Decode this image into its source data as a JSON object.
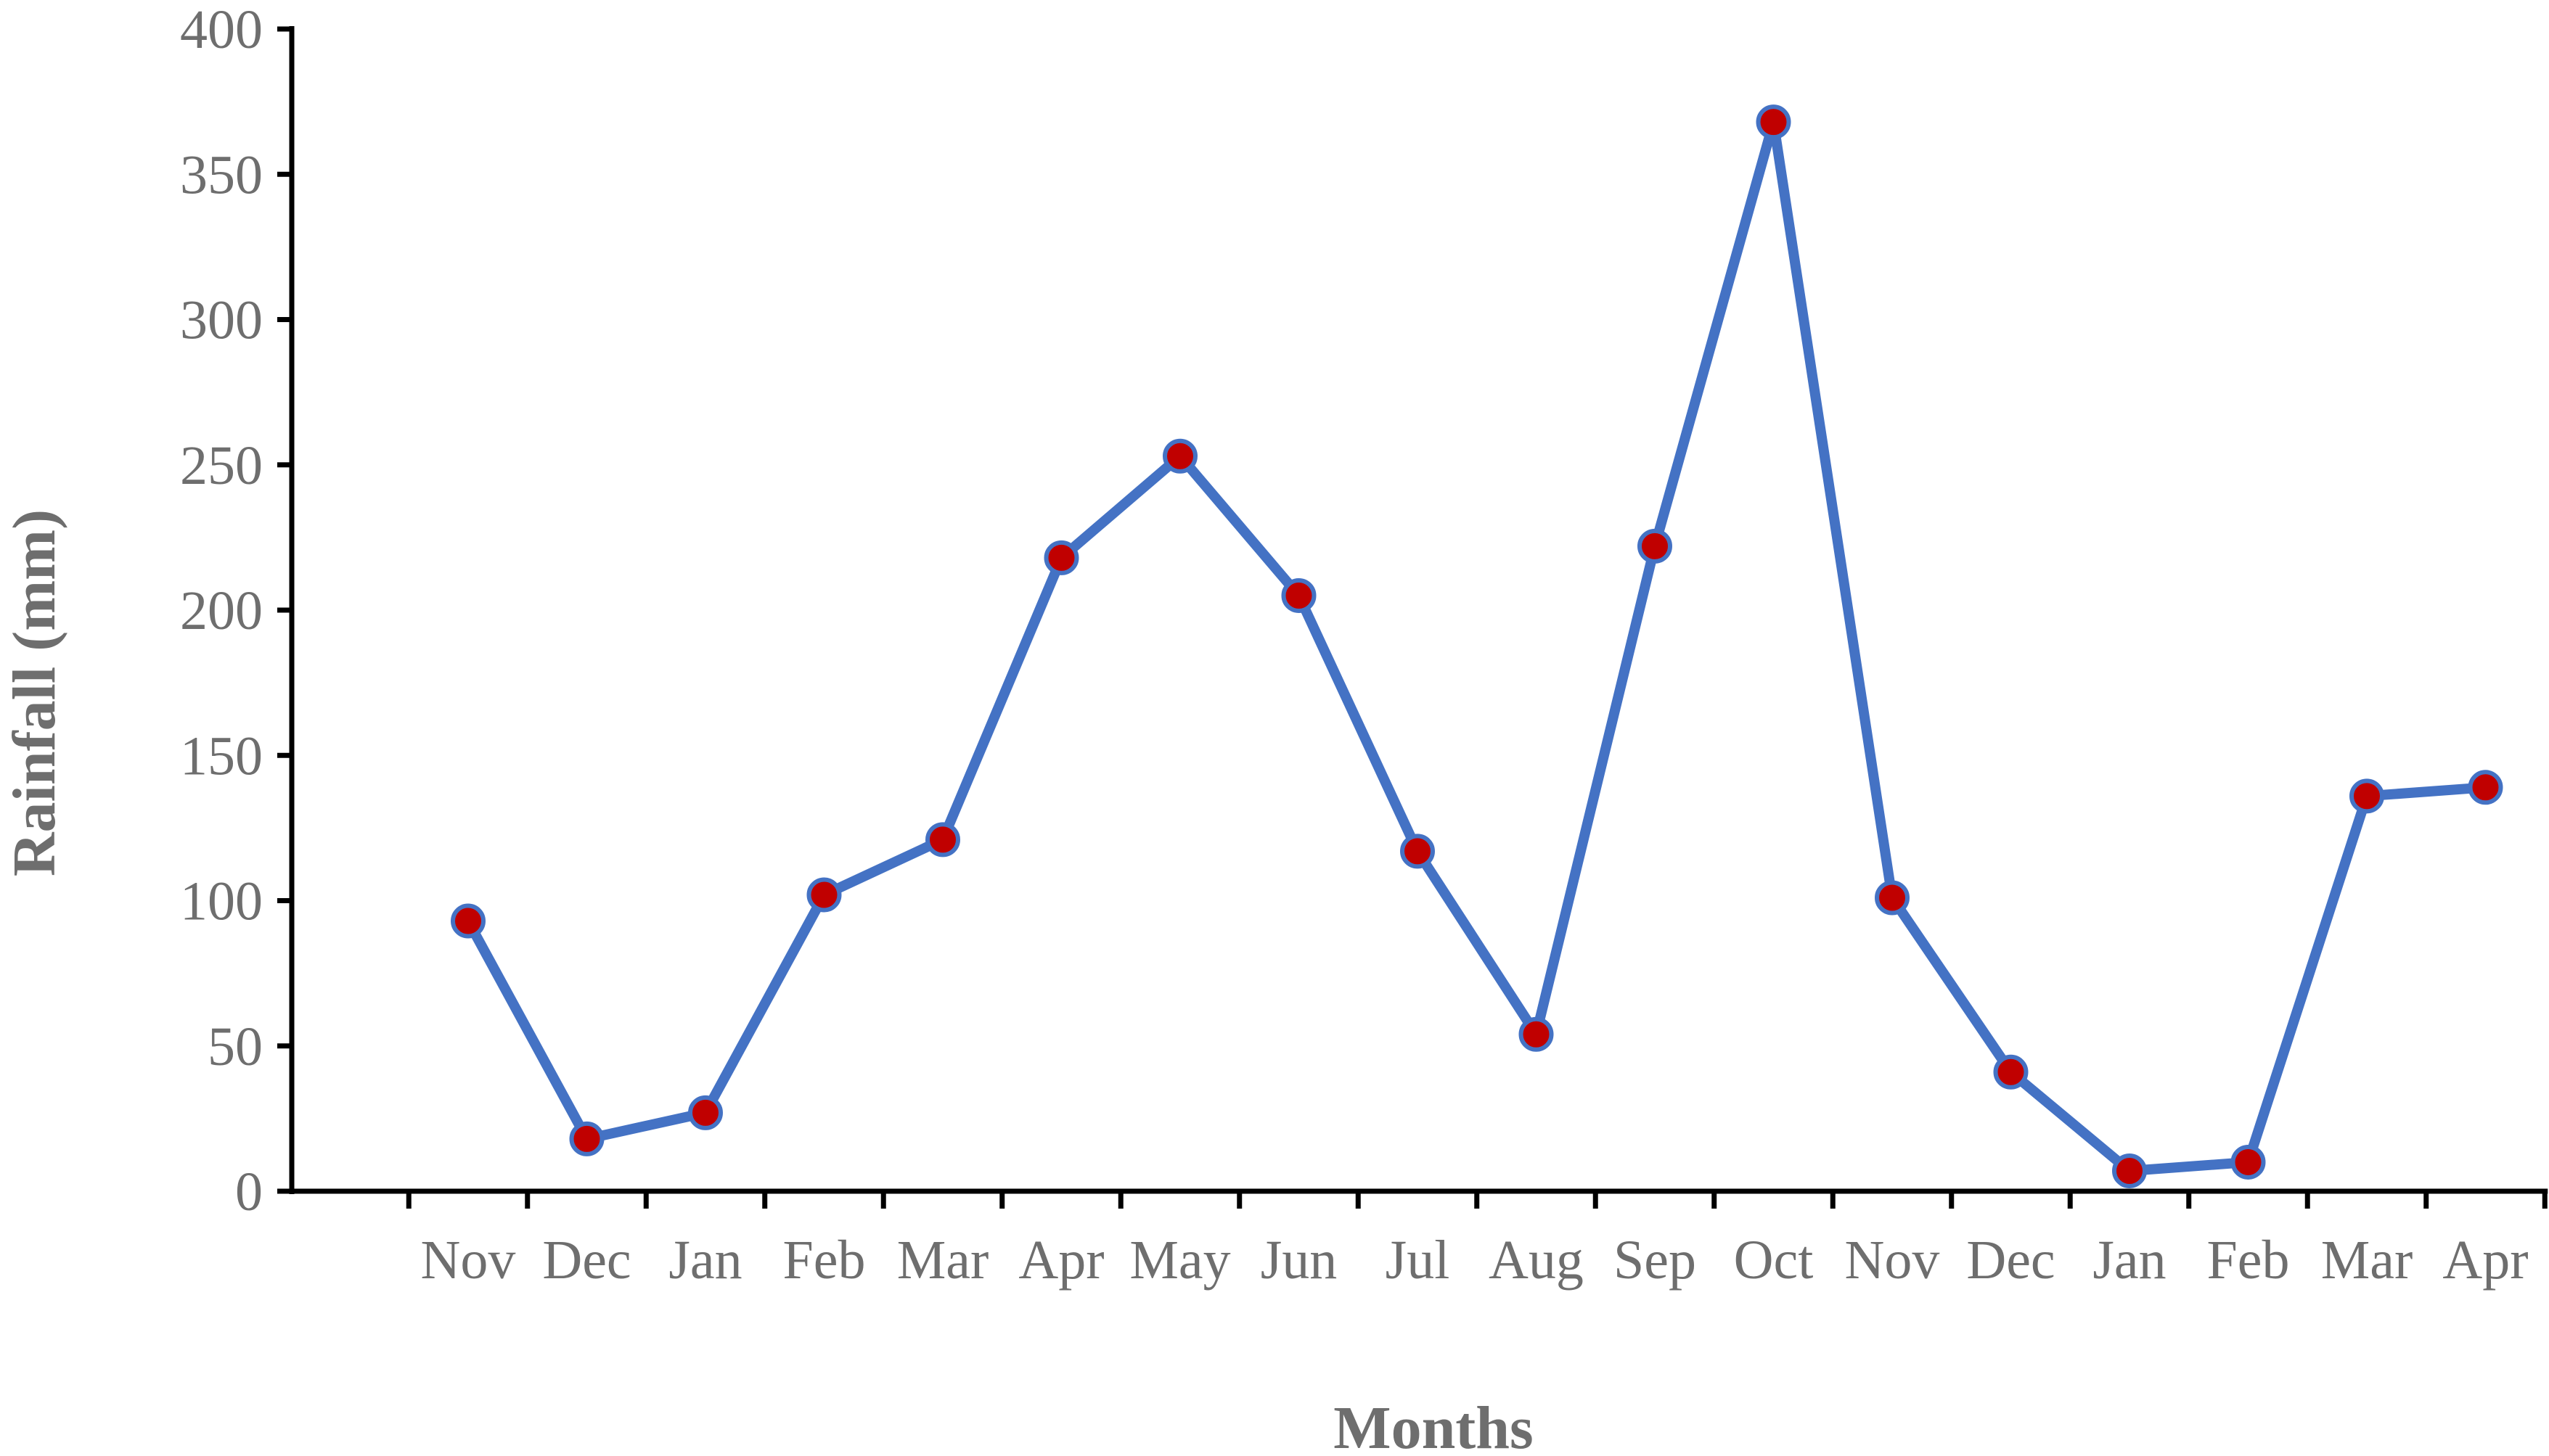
{
  "chart_data": {
    "type": "line",
    "title": "",
    "xlabel": "Months",
    "ylabel": "Rainfall (mm)",
    "ylim": [
      0,
      400
    ],
    "yticks": [
      0,
      50,
      100,
      150,
      200,
      250,
      300,
      350,
      400
    ],
    "grid": false,
    "legend": "none",
    "categories": [
      "Nov",
      "Dec",
      "Jan",
      "Feb",
      "Mar",
      "Apr",
      "May",
      "Jun",
      "Jul",
      "Aug",
      "Sep",
      "Oct",
      "Nov",
      "Dec",
      "Jan",
      "Feb",
      "Mar",
      "Apr"
    ],
    "series": [
      {
        "values": [
          93,
          18,
          27,
          102,
          121,
          218,
          253,
          205,
          117,
          54,
          222,
          368,
          101,
          41,
          7,
          10,
          136,
          139
        ],
        "line_color": "#4472C4",
        "marker_color": "#C00000"
      }
    ]
  }
}
